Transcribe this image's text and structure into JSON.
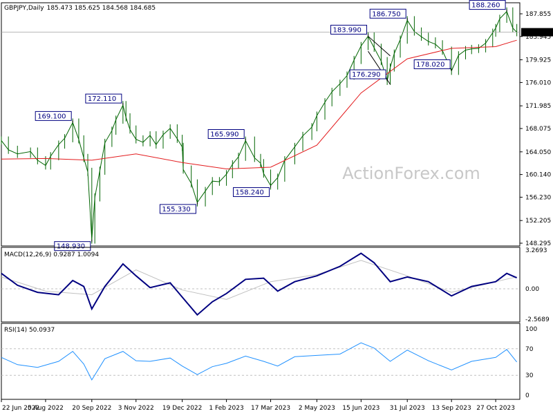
{
  "header": {
    "symbol": "GBPJPY,Daily",
    "ohlc": "185.473 185.625 184.568 184.685"
  },
  "watermark": "ActionForex.com",
  "colors": {
    "background": "#ffffff",
    "candle": "#006400",
    "sma": "#e31a1c",
    "macd_line": "#000080",
    "macd_signal": "#c0c0c0",
    "rsi_line": "#1e90ff",
    "callout_text": "#000080",
    "grid_dash": "#c0c0c0",
    "current_price_box": "#000000"
  },
  "chart_data": [
    {
      "type": "line",
      "name": "price",
      "title": "",
      "price_ticks": [
        "187.855",
        "183.945",
        "179.925",
        "176.010",
        "171.985",
        "168.075",
        "164.050",
        "160.140",
        "156.230",
        "152.205",
        "148.295"
      ],
      "ylim": [
        148.295,
        187.855
      ],
      "current_price": "184.685",
      "x_dates": [
        "22 Jun 2022",
        "5 Aug 2022",
        "20 Sep 2022",
        "3 Nov 2022",
        "19 Dec 2022",
        "1 Feb 2023",
        "17 Mar 2023",
        "2 May 2023",
        "15 Jun 2023",
        "31 Jul 2023",
        "13 Sep 2023",
        "27 Oct 2023"
      ],
      "close_path": {
        "x": [
          "22 Jun 2022",
          "29 Jun 2022",
          "8 Jul 2022",
          "21 Jul 2022",
          "28 Jul 2022",
          "5 Aug 2022",
          "10 Aug 2022",
          "18 Aug 2022",
          "24 Aug 2022",
          "1 Sep 2022",
          "7 Sep 2022",
          "12 Sep 2022",
          "16 Sep 2022",
          "20 Sep 2022",
          "23 Sep 2022",
          "28 Sep 2022",
          "3 Oct 2022",
          "10 Oct 2022",
          "14 Oct 2022",
          "21 Oct 2022",
          "24 Oct 2022",
          "28 Oct 2022",
          "3 Nov 2022",
          "10 Nov 2022",
          "17 Nov 2022",
          "23 Nov 2022",
          "30 Nov 2022",
          "7 Dec 2022",
          "14 Dec 2022",
          "19 Dec 2022",
          "20 Dec 2022",
          "28 Dec 2022",
          "3 Jan 2023",
          "11 Jan 2023",
          "18 Jan 2023",
          "25 Jan 2023",
          "1 Feb 2023",
          "7 Feb 2023",
          "13 Feb 2023",
          "20 Feb 2023",
          "1 Mar 2023",
          "7 Mar 2023",
          "10 Mar 2023",
          "17 Mar 2023",
          "24 Mar 2023",
          "31 Mar 2023",
          "10 Apr 2023",
          "18 Apr 2023",
          "27 Apr 2023",
          "2 May 2023",
          "10 May 2023",
          "17 May 2023",
          "25 May 2023",
          "1 Jun 2023",
          "8 Jun 2023",
          "15 Jun 2023",
          "22 Jun 2023",
          "28 Jun 2023",
          "5 Jul 2023",
          "11 Jul 2023",
          "14 Jul 2023",
          "18 Jul 2023",
          "24 Jul 2023",
          "31 Jul 2023",
          "7 Aug 2023",
          "14 Aug 2023",
          "21 Aug 2023",
          "28 Aug 2023",
          "4 Sep 2023",
          "13 Sep 2023",
          "20 Sep 2023",
          "27 Sep 2023",
          "3 Oct 2023",
          "10 Oct 2023",
          "17 Oct 2023",
          "24 Oct 2023",
          "27 Oct 2023",
          "31 Oct 2023",
          "7 Nov 2023",
          "13 Nov 2023",
          "17 Nov 2023"
        ],
        "y": [
          166.0,
          164.4,
          163.7,
          164.1,
          162.6,
          161.7,
          163.3,
          165.3,
          166.4,
          169.1,
          166.2,
          163.0,
          160.6,
          148.93,
          156.2,
          160.8,
          165.6,
          167.7,
          169.6,
          172.11,
          170.0,
          167.9,
          166.2,
          165.7,
          166.9,
          165.3,
          167.0,
          168.1,
          166.3,
          164.9,
          161.0,
          158.6,
          155.33,
          157.3,
          159.0,
          158.9,
          160.2,
          161.9,
          163.2,
          165.99,
          163.0,
          162.1,
          160.3,
          158.24,
          159.6,
          162.6,
          164.9,
          166.8,
          168.3,
          170.3,
          172.6,
          174.4,
          175.8,
          177.2,
          179.9,
          182.3,
          183.99,
          182.0,
          179.7,
          176.29,
          178.6,
          181.0,
          183.4,
          186.75,
          184.8,
          183.9,
          183.1,
          182.6,
          181.5,
          178.02,
          180.7,
          181.6,
          181.8,
          181.9,
          182.8,
          184.6,
          185.4,
          187.0,
          188.26,
          185.4,
          184.685
        ]
      },
      "sma_path": {
        "x": [
          "22 Jun 2022",
          "5 Aug 2022",
          "20 Sep 2022",
          "3 Nov 2022",
          "19 Dec 2022",
          "1 Feb 2023",
          "17 Mar 2023",
          "2 May 2023",
          "15 Jun 2023",
          "31 Jul 2023",
          "13 Sep 2023",
          "27 Oct 2023",
          "17 Nov 2023"
        ],
        "y": [
          162.8,
          162.9,
          162.6,
          163.7,
          162.2,
          161.1,
          161.4,
          165.2,
          174.2,
          180.1,
          181.9,
          182.2,
          183.3
        ]
      },
      "levels": [
        {
          "label": "169.100",
          "value": 169.1,
          "x": "1 Sep 2022"
        },
        {
          "label": "148.930",
          "value": 148.93,
          "x": "20 Sep 2022"
        },
        {
          "label": "172.110",
          "value": 172.11,
          "x": "21 Oct 2022"
        },
        {
          "label": "155.330",
          "value": 155.33,
          "x": "3 Jan 2023"
        },
        {
          "label": "165.990",
          "value": 165.99,
          "x": "20 Feb 2023"
        },
        {
          "label": "158.240",
          "value": 158.24,
          "x": "17 Mar 2023"
        },
        {
          "label": "183.990",
          "value": 183.99,
          "x": "22 Jun 2023"
        },
        {
          "label": "176.290",
          "value": 176.29,
          "x": "11 Jul 2023"
        },
        {
          "label": "186.750",
          "value": 186.75,
          "x": "31 Jul 2023"
        },
        {
          "label": "178.020",
          "value": 178.02,
          "x": "13 Sep 2023"
        },
        {
          "label": "188.260",
          "value": 188.26,
          "x": "7 Nov 2023"
        }
      ],
      "wedge_lines": [
        {
          "from": {
            "x": "22 Jun 2023",
            "y": 183.99
          },
          "to": {
            "x": "14 Jul 2023",
            "y": 180.6
          }
        },
        {
          "from": {
            "x": "22 Jun 2023",
            "y": 181.4
          },
          "to": {
            "x": "14 Jul 2023",
            "y": 175.7
          }
        }
      ]
    },
    {
      "type": "line",
      "name": "macd",
      "title": "MACD(12,26,9) 0.9287 1.0094",
      "ticks": [
        "3.2693",
        "0.00",
        "-2.5689"
      ],
      "ylim": [
        -2.5689,
        3.2693
      ],
      "macd": {
        "x": [
          "22 Jun 2022",
          "8 Jul 2022",
          "28 Jul 2022",
          "18 Aug 2022",
          "1 Sep 2022",
          "12 Sep 2022",
          "20 Sep 2022",
          "3 Oct 2022",
          "21 Oct 2022",
          "3 Nov 2022",
          "17 Nov 2022",
          "7 Dec 2022",
          "19 Dec 2022",
          "3 Jan 2023",
          "18 Jan 2023",
          "1 Feb 2023",
          "20 Feb 2023",
          "10 Mar 2023",
          "24 Mar 2023",
          "10 Apr 2023",
          "2 May 2023",
          "25 May 2023",
          "15 Jun 2023",
          "28 Jun 2023",
          "14 Jul 2023",
          "31 Jul 2023",
          "21 Aug 2023",
          "13 Sep 2023",
          "3 Oct 2023",
          "27 Oct 2023",
          "7 Nov 2023",
          "17 Nov 2023"
        ],
        "y": [
          1.3,
          0.3,
          -0.3,
          -0.5,
          0.7,
          0.2,
          -1.7,
          0.2,
          2.1,
          1.1,
          0.1,
          0.5,
          -0.7,
          -2.2,
          -1.1,
          -0.4,
          0.8,
          0.9,
          -0.2,
          0.6,
          1.1,
          1.9,
          3.0,
          2.2,
          0.6,
          1.0,
          0.6,
          -0.6,
          0.2,
          0.6,
          1.3,
          0.93
        ]
      },
      "signal": {
        "x": [
          "22 Jun 2022",
          "5 Aug 2022",
          "20 Sep 2022",
          "3 Nov 2022",
          "19 Dec 2022",
          "1 Feb 2023",
          "17 Mar 2023",
          "2 May 2023",
          "15 Jun 2023",
          "31 Jul 2023",
          "13 Sep 2023",
          "27 Oct 2023",
          "17 Nov 2023"
        ],
        "y": [
          1.0,
          -0.2,
          -0.5,
          1.6,
          -0.1,
          -0.9,
          0.6,
          1.2,
          2.4,
          1.1,
          -0.3,
          0.6,
          1.0094
        ]
      }
    },
    {
      "type": "line",
      "name": "rsi",
      "title": "RSI(14) 50.0937",
      "ticks": [
        "100",
        "70",
        "30",
        "0"
      ],
      "ylim": [
        0,
        100
      ],
      "rsi": {
        "x": [
          "22 Jun 2022",
          "8 Jul 2022",
          "28 Jul 2022",
          "18 Aug 2022",
          "1 Sep 2022",
          "12 Sep 2022",
          "20 Sep 2022",
          "3 Oct 2022",
          "21 Oct 2022",
          "3 Nov 2022",
          "17 Nov 2022",
          "7 Dec 2022",
          "19 Dec 2022",
          "3 Jan 2023",
          "18 Jan 2023",
          "1 Feb 2023",
          "20 Feb 2023",
          "10 Mar 2023",
          "24 Mar 2023",
          "10 Apr 2023",
          "2 May 2023",
          "25 May 2023",
          "15 Jun 2023",
          "28 Jun 2023",
          "14 Jul 2023",
          "31 Jul 2023",
          "21 Aug 2023",
          "13 Sep 2023",
          "3 Oct 2023",
          "27 Oct 2023",
          "7 Nov 2023",
          "17 Nov 2023"
        ],
        "y": [
          57,
          46,
          42,
          51,
          66,
          47,
          23,
          55,
          66,
          52,
          51,
          56,
          44,
          31,
          43,
          48,
          59,
          51,
          44,
          58,
          60,
          62,
          79,
          71,
          51,
          68,
          52,
          38,
          51,
          57,
          69,
          50.0937
        ]
      }
    }
  ]
}
